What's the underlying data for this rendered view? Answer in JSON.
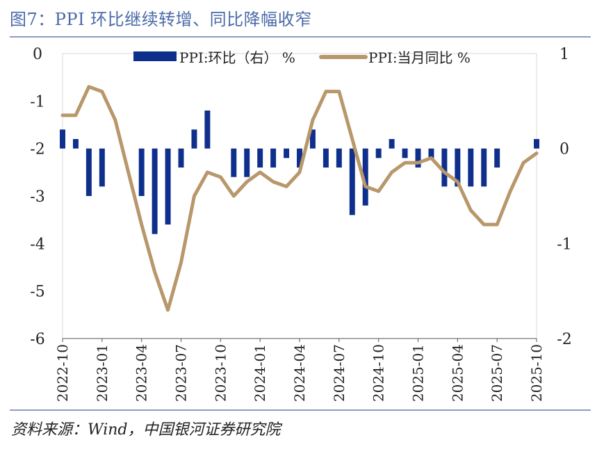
{
  "title": "图7：PPI 环比继续转增、同比降幅收窄",
  "source": "资料来源：Wind，中国银河证券研究院",
  "colors": {
    "bar": "#0f2f8c",
    "line": "#b8976a",
    "title": "#4a6aa8",
    "rule": "#8a9cc4"
  },
  "chart_data": {
    "type": "bar+line",
    "left_axis": {
      "ylim": [
        -6,
        0
      ],
      "ticks": [
        "0",
        "-1",
        "-2",
        "-3",
        "-4",
        "-5",
        "-6"
      ]
    },
    "right_axis": {
      "ylim": [
        -2,
        1
      ],
      "ticks": [
        "1",
        "0",
        "-1",
        "-2"
      ]
    },
    "x_tick_labels": [
      "2022-10",
      "2023-01",
      "2023-04",
      "2023-07",
      "2023-10",
      "2024-01",
      "2024-04",
      "2024-07",
      "2024-10",
      "2025-01",
      "2025-04",
      "2025-07",
      "2025-10"
    ],
    "x": [
      "2022-10",
      "2022-11",
      "2022-12",
      "2023-01",
      "2023-02",
      "2023-03",
      "2023-04",
      "2023-05",
      "2023-06",
      "2023-07",
      "2023-08",
      "2023-09",
      "2023-10",
      "2023-11",
      "2023-12",
      "2024-01",
      "2024-02",
      "2024-03",
      "2024-04",
      "2024-05",
      "2024-06",
      "2024-07",
      "2024-08",
      "2024-09",
      "2024-10",
      "2024-11",
      "2024-12",
      "2025-01",
      "2025-02",
      "2025-03",
      "2025-04",
      "2025-05",
      "2025-06",
      "2025-07",
      "2025-08",
      "2025-09",
      "2025-10"
    ],
    "series": [
      {
        "name": "PPI:环比（右） %",
        "type": "bar",
        "axis": "right",
        "values": [
          0.2,
          0.1,
          -0.5,
          -0.4,
          0.0,
          0.0,
          -0.5,
          -0.9,
          -0.8,
          -0.2,
          0.2,
          0.4,
          0.0,
          -0.3,
          -0.3,
          -0.2,
          -0.2,
          -0.1,
          -0.2,
          0.2,
          -0.2,
          -0.2,
          -0.7,
          -0.6,
          -0.1,
          0.1,
          -0.1,
          -0.2,
          -0.1,
          -0.4,
          -0.4,
          -0.4,
          -0.4,
          -0.2,
          0.0,
          0.0,
          0.1
        ]
      },
      {
        "name": "PPI:当月同比 %",
        "type": "line",
        "axis": "left",
        "values": [
          -1.3,
          -1.3,
          -0.7,
          -0.8,
          -1.4,
          -2.5,
          -3.6,
          -4.6,
          -5.4,
          -4.4,
          -3.0,
          -2.5,
          -2.6,
          -3.0,
          -2.7,
          -2.5,
          -2.7,
          -2.8,
          -2.5,
          -1.4,
          -0.8,
          -0.8,
          -1.8,
          -2.8,
          -2.9,
          -2.5,
          -2.3,
          -2.3,
          -2.2,
          -2.5,
          -2.7,
          -3.3,
          -3.6,
          -3.6,
          -2.9,
          -2.3,
          -2.1
        ]
      }
    ]
  }
}
